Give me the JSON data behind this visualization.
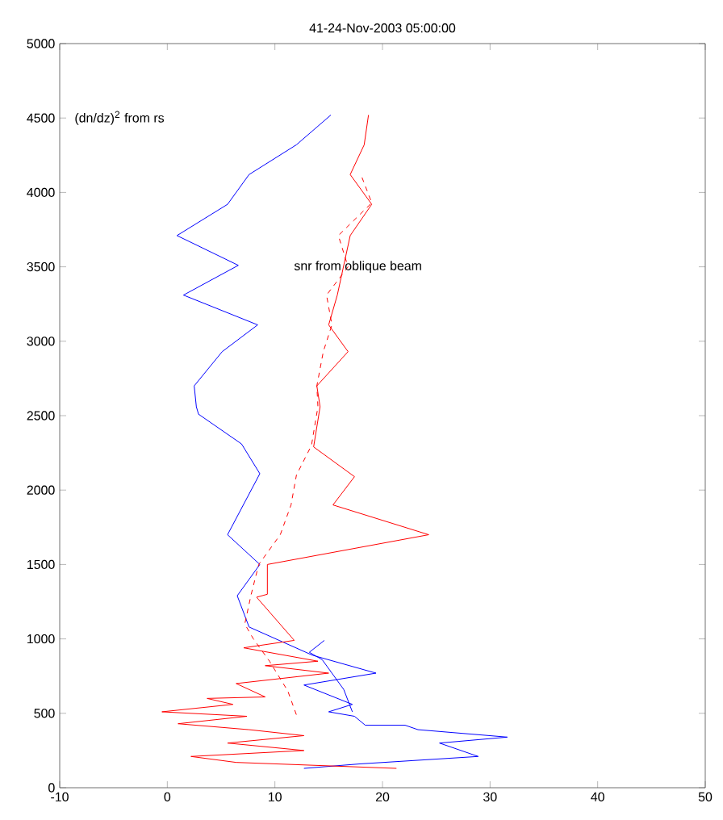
{
  "chart_data": {
    "type": "line",
    "title": "41-24-Nov-2003 05:00:00",
    "xlim": [
      -10,
      50
    ],
    "xticks": [
      -10,
      0,
      10,
      20,
      30,
      40,
      50
    ],
    "ylim": [
      0,
      5000
    ],
    "yticks": [
      0,
      500,
      1000,
      1500,
      2000,
      2500,
      3000,
      3500,
      4000,
      4500,
      5000
    ],
    "marker": "none",
    "series": [
      {
        "color": "#0000ff",
        "line_style": "solid",
        "x": [
          15.2,
          12.0,
          7.6,
          5.6,
          0.9,
          6.6,
          1.5,
          8.4,
          5.1,
          2.5,
          2.7,
          2.9,
          6.9,
          8.6,
          5.6,
          8.6,
          6.5,
          7.6,
          13.5,
          19.4,
          12.7,
          17.2,
          15.0,
          17.4,
          18.4,
          22.1,
          23.3,
          31.6,
          25.3,
          28.9,
          17.9,
          12.7
        ],
        "values": [
          4520,
          4320,
          4120,
          3920,
          3710,
          3510,
          3310,
          3110,
          2930,
          2700,
          2560,
          2510,
          2310,
          2110,
          1700,
          1500,
          1290,
          1080,
          890,
          770,
          690,
          560,
          510,
          480,
          420,
          420,
          390,
          340,
          300,
          210,
          160,
          130
        ]
      },
      {
        "color": "#0000ff",
        "line_style": "solid",
        "x": [
          14.6,
          13.2,
          14.4,
          16.4,
          17.2
        ],
        "values": [
          990,
          910,
          860,
          660,
          510
        ]
      },
      {
        "color": "#ff0000",
        "line_style": "solid",
        "x": [
          18.7,
          18.3,
          17.0,
          19.0,
          17.0,
          15.8,
          15.0,
          16.8,
          13.9,
          14.2,
          13.6,
          17.4,
          15.4,
          24.3,
          9.3,
          9.3,
          8.3,
          11.8,
          7.1,
          14.0,
          9.1,
          15.0,
          6.4,
          9.1,
          3.7,
          6.1,
          -0.5,
          7.4,
          1.0,
          7.6,
          12.7,
          5.6,
          12.7,
          2.2,
          6.4,
          21.3
        ],
        "values": [
          4520,
          4320,
          4120,
          3920,
          3710,
          3310,
          3110,
          2930,
          2700,
          2560,
          2290,
          2090,
          1900,
          1700,
          1500,
          1300,
          1280,
          990,
          940,
          850,
          820,
          770,
          700,
          610,
          600,
          560,
          510,
          480,
          430,
          390,
          350,
          300,
          250,
          210,
          170,
          130
        ]
      },
      {
        "color": "#ff0000",
        "line_style": "dashed",
        "x": [
          18.1,
          19.0,
          15.9,
          16.8,
          14.8,
          15.3,
          14.5,
          13.9,
          14.0,
          13.4,
          12.0,
          11.5,
          10.5,
          8.5,
          7.8,
          7.2,
          8.0,
          9.5,
          11.2,
          12.0
        ],
        "values": [
          4100,
          3930,
          3710,
          3500,
          3310,
          3110,
          2930,
          2700,
          2560,
          2300,
          2100,
          1900,
          1700,
          1500,
          1300,
          1100,
          1000,
          850,
          650,
          490
        ]
      }
    ],
    "annotations": [
      "(dn/dz)$^{2}$ from rs",
      "snr from oblique beam"
    ]
  }
}
